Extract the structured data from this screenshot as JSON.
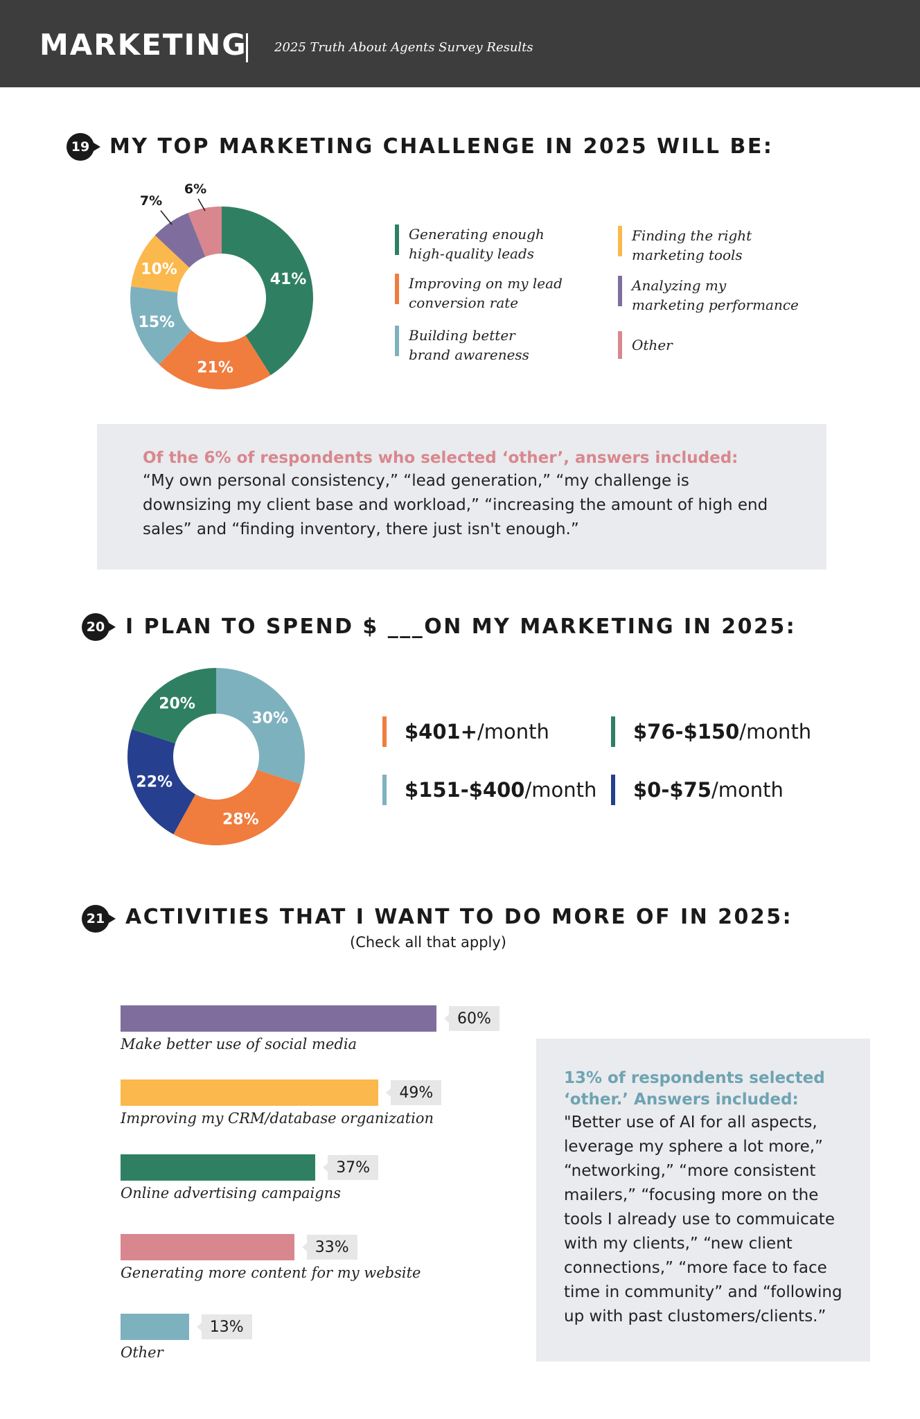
{
  "header": {
    "title": "MARKETING",
    "subtitle": "2025 Truth About Agents Survey Results"
  },
  "q19": {
    "number": "19",
    "title": "MY TOP MARKETING CHALLENGE IN 2025 WILL BE:",
    "note_heading": "Of the 6% of respondents who selected ‘other’, answers included:",
    "note_body": "“My own personal consistency,” “lead generation,” “my challenge is downsizing my client base and workload,” “increasing the amount of high end sales” and “finding inventory, there just isn't enough.”"
  },
  "q20": {
    "number": "20",
    "title": "I PLAN TO SPEND $ ___ON MY MARKETING IN 2025:",
    "items": [
      {
        "amount": "$401+",
        "unit": "/month",
        "color": "#f07c3e"
      },
      {
        "amount": "$76-$150",
        "unit": "/month",
        "color": "#2f8062"
      },
      {
        "amount": "$151-$400",
        "unit": "/month",
        "color": "#7eb1be"
      },
      {
        "amount": "$0-$75",
        "unit": "/month",
        "color": "#263f8f"
      }
    ]
  },
  "q21": {
    "number": "21",
    "title": "ACTIVITIES THAT I WANT TO DO MORE OF IN 2025:",
    "subtitle": "(Check all that apply)",
    "note_heading": "13% of respondents selected ‘other.’ Answers included:",
    "note_body": "\"Better use of AI for all aspects, leverage my sphere a lot more,” “networking,” “more consistent mailers,” “focusing more on the tools I already use to commuicate with my clients,” “new client connections,” “more face to face time in community” and “following up with past clustomers/clients.”"
  },
  "chart_data": [
    {
      "type": "pie",
      "title": "MY TOP MARKETING CHALLENGE IN 2025 WILL BE:",
      "categories": [
        "Generating enough\nhigh-quality leads",
        "Improving on my lead\nconversion rate",
        "Building better\nbrand awareness",
        "Finding the right\nmarketing tools",
        "Analyzing my\nmarketing performance",
        "Other"
      ],
      "values": [
        41,
        21,
        15,
        10,
        7,
        6
      ],
      "labels": [
        "41%",
        "21%",
        "15%",
        "10%",
        "7%",
        "6%"
      ],
      "colors": [
        "#2f8062",
        "#f07c3e",
        "#7eb1be",
        "#fbb84c",
        "#7f6e9d",
        "#d9878e"
      ],
      "donut": true
    },
    {
      "type": "pie",
      "title": "I PLAN TO SPEND $ ___ON MY MARKETING IN 2025:",
      "categories": [
        "$151-$400/month",
        "$401+/month",
        "$0-$75/month",
        "$76-$150/month"
      ],
      "values": [
        30,
        28,
        22,
        20
      ],
      "labels": [
        "30%",
        "28%",
        "22%",
        "20%"
      ],
      "colors": [
        "#7eb1be",
        "#f07c3e",
        "#263f8f",
        "#2f8062"
      ],
      "donut": true
    },
    {
      "type": "bar",
      "orientation": "horizontal",
      "title": "ACTIVITIES THAT I WANT TO DO MORE OF IN 2025:",
      "categories": [
        "Make better use of social media",
        "Improving my CRM/database organization",
        "Online advertising campaigns",
        "Generating more content for my website",
        "Other"
      ],
      "values": [
        60,
        49,
        37,
        33,
        13
      ],
      "labels": [
        "60%",
        "49%",
        "37%",
        "33%",
        "13%"
      ],
      "colors": [
        "#7f6e9d",
        "#fbb84c",
        "#2f8062",
        "#d9878e",
        "#7eb1be"
      ],
      "xlim": [
        0,
        100
      ]
    }
  ]
}
